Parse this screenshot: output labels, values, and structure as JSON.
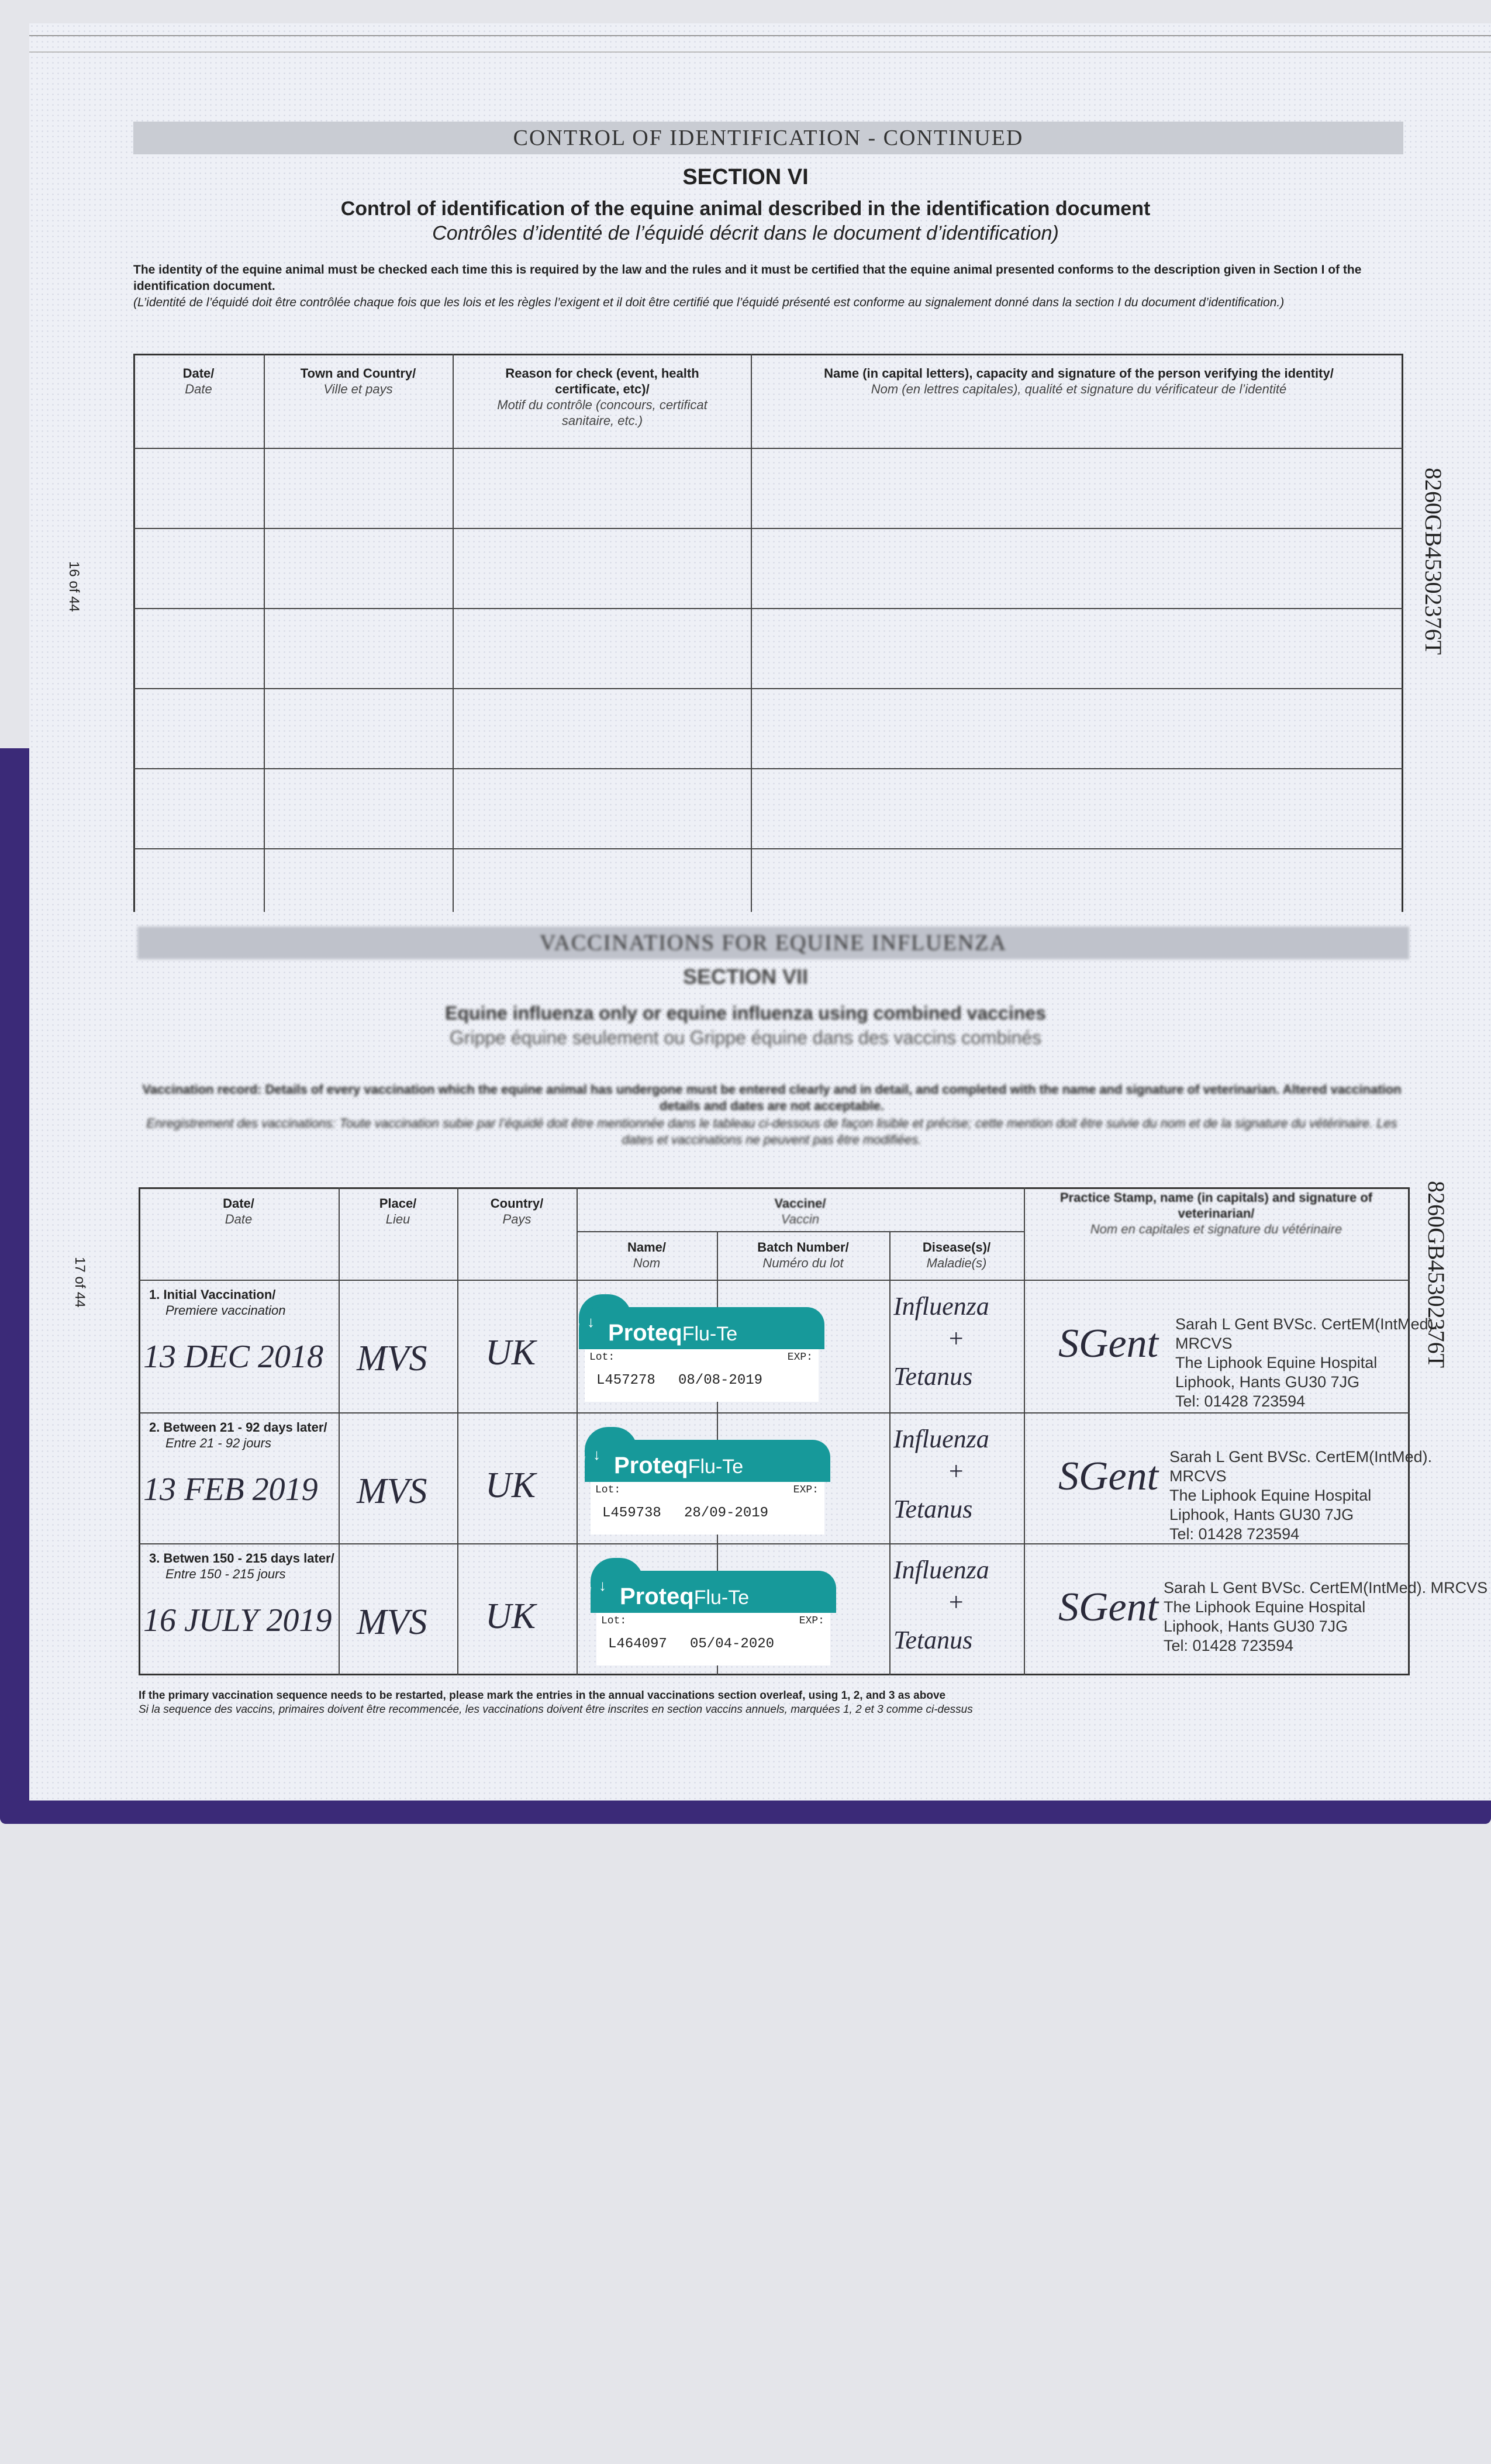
{
  "page_top": {
    "band": "CONTROL OF IDENTIFICATION - CONTINUED",
    "section": "SECTION VI",
    "title_en": "Control of identification of the equine animal described in the identification document",
    "title_fr": "Contrôles d’identité de l’équidé décrit dans le document d’identification)",
    "intro_en": "The identity of the equine animal must be checked each time this is required by the law and the rules and it must be certified that the equine animal presented conforms to the description given in Section I of the identification document.",
    "intro_fr": "(L’identité de l’équidé doit être contrôlée chaque fois que les lois et les règles l’exigent et il doit être certifié que l’équidé présenté est conforme au signalement donné dans la section I du document d’identification.)",
    "columns": [
      {
        "en": "Date/",
        "fr": "Date"
      },
      {
        "en": "Town and Country/",
        "fr": "Ville et pays"
      },
      {
        "en": "Reason for check (event, health certificate, etc)/",
        "fr": "Motif du contrôle (concours, certificat sanitaire, etc.)"
      },
      {
        "en": "Name (in capital letters), capacity and signature of the person verifying the identity/",
        "fr": "Nom (en lettres capitales), qualité et signature du vérificateur de l’identité"
      }
    ],
    "page_number": "16 of 44",
    "doc_number": "8260GB45302376T"
  },
  "page_bottom": {
    "band": "VACCINATIONS FOR EQUINE INFLUENZA",
    "section": "SECTION VII",
    "title_en": "Equine influenza only or equine influenza using combined vaccines",
    "title_fr": "Grippe équine seulement ou Grippe équine dans des vaccins combinés",
    "intro_en": "Vaccination record: Details of every vaccination which the equine animal has undergone must be entered clearly and in detail, and completed with the name and signature of veterinarian. Altered vaccination details and dates are not acceptable.",
    "intro_fr": "Enregistrement des vaccinations: Toute vaccination subie par l’équidé doit être mentionnée dans le tableau ci-dessous de façon lisible et précise; cette mention doit être suivie du nom et de la signature du vétérinaire. Les dates et vaccinations ne peuvent pas être modifiées.",
    "columns": {
      "date": {
        "en": "Date/",
        "fr": "Date"
      },
      "place": {
        "en": "Place/",
        "fr": "Lieu"
      },
      "country": {
        "en": "Country/",
        "fr": "Pays"
      },
      "vaccine": {
        "en": "Vaccine/",
        "fr": "Vaccin"
      },
      "name": {
        "en": "Name/",
        "fr": "Nom"
      },
      "batch": {
        "en": "Batch Number/",
        "fr": "Numéro du lot"
      },
      "disease": {
        "en": "Disease(s)/",
        "fr": "Maladie(s)"
      },
      "vet": {
        "en": "Practice Stamp, name (in capitals) and signature of veterinarian/",
        "fr": "Nom en capitales et signature du vétérinaire"
      }
    },
    "rows": [
      {
        "label_en": "1. Initial Vaccination/",
        "label_fr": "Premiere vaccination",
        "date": "13 DEC 2018",
        "place": "MVS",
        "country": "UK",
        "vaccine_brand": "Proteq",
        "vaccine_name": "Flu-Te",
        "lot_label": "Lot:",
        "exp_label": "EXP:",
        "lot": "L457278",
        "exp": "08/08-2019",
        "disease_1": "Influenza",
        "disease_plus": "+",
        "disease_2": "Tetanus",
        "signature": "SGent",
        "stamp": [
          "Sarah L Gent BVSc. CertEM(IntMed). MRCVS",
          "The Liphook Equine Hospital",
          "Liphook, Hants  GU30 7JG",
          "Tel: 01428 723594"
        ]
      },
      {
        "label_en": "2. Between 21 - 92 days later/",
        "label_fr": "Entre 21 - 92 jours",
        "date": "13 FEB 2019",
        "place": "MVS",
        "country": "UK",
        "vaccine_brand": "Proteq",
        "vaccine_name": "Flu-Te",
        "lot_label": "Lot:",
        "exp_label": "EXP:",
        "lot": "L459738",
        "exp": "28/09-2019",
        "disease_1": "Influenza",
        "disease_plus": "+",
        "disease_2": "Tetanus",
        "signature": "SGent",
        "stamp": [
          "Sarah L Gent BVSc. CertEM(IntMed). MRCVS",
          "The Liphook Equine Hospital",
          "Liphook, Hants  GU30 7JG",
          "Tel: 01428 723594"
        ]
      },
      {
        "label_en": "3. Betwen 150 - 215 days later/",
        "label_fr": "Entre 150 - 215 jours",
        "date": "16 JULY 2019",
        "place": "MVS",
        "country": "UK",
        "vaccine_brand": "Proteq",
        "vaccine_name": "Flu-Te",
        "lot_label": "Lot:",
        "exp_label": "EXP:",
        "lot": "L464097",
        "exp": "05/04-2020",
        "disease_1": "Influenza",
        "disease_plus": "+",
        "disease_2": "Tetanus",
        "signature": "SGent",
        "stamp": [
          "Sarah L Gent BVSc. CertEM(IntMed). MRCVS",
          "The Liphook Equine Hospital",
          "Liphook, Hants  GU30 7JG",
          "Tel: 01428 723594"
        ]
      }
    ],
    "footer_en": "If the primary vaccination sequence needs to be restarted, please mark the entries in the annual vaccinations section overleaf, using 1, 2, and 3 as above",
    "footer_fr": "Si la sequence des vaccins, primaires doivent être recommencée, les vaccinations doivent être inscrites en section vaccins annuels, marquées 1, 2 et 3 comme ci-dessus",
    "page_number": "17 of 44",
    "doc_number": "8260GB45302376T"
  },
  "colors": {
    "sticker_teal": "#17999a",
    "cover_purple": "#3b2a78"
  }
}
